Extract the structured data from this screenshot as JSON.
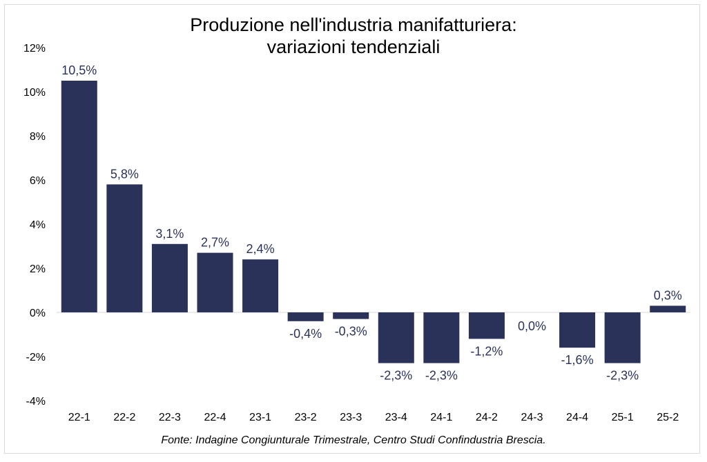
{
  "chart_data": {
    "type": "bar",
    "title_lines": [
      "Produzione nell'industria manifatturiera:",
      "variazioni tendenziali"
    ],
    "source": "Fonte: Indagine Congiunturale Trimestrale, Centro Studi Confindustria Brescia.",
    "categories": [
      "22-1",
      "22-2",
      "22-3",
      "22-4",
      "23-1",
      "23-2",
      "23-3",
      "23-4",
      "24-1",
      "24-2",
      "24-3",
      "24-4",
      "25-1",
      "25-2"
    ],
    "values": [
      10.5,
      5.8,
      3.1,
      2.7,
      2.4,
      -0.4,
      -0.3,
      -2.3,
      -2.3,
      -1.2,
      0.0,
      -1.6,
      -2.3,
      0.3
    ],
    "data_labels": [
      "10,5%",
      "5,8%",
      "3,1%",
      "2,7%",
      "2,4%",
      "-0,4%",
      "-0,3%",
      "-2,3%",
      "-2,3%",
      "-1,2%",
      "0,0%",
      "-1,6%",
      "-2,3%",
      "0,3%"
    ],
    "ylim": [
      -4,
      12
    ],
    "yticks": [
      12,
      10,
      8,
      6,
      4,
      2,
      0,
      -2,
      -4
    ],
    "ytick_labels": [
      "12%",
      "10%",
      "8%",
      "6%",
      "4%",
      "2%",
      "0%",
      "-2%",
      "-4%"
    ],
    "xlabel": "",
    "ylabel": "",
    "grid": false,
    "bar_color": "#2b3259",
    "label_color": "#2b3259"
  }
}
